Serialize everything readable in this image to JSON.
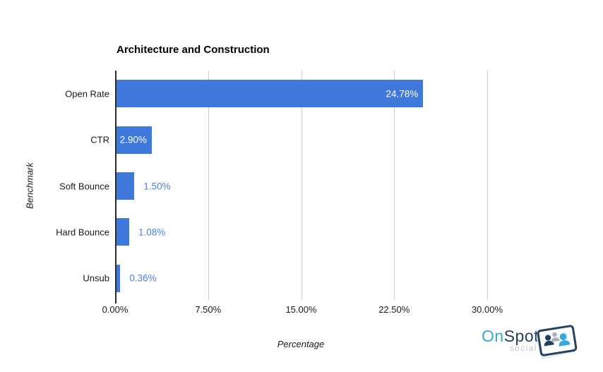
{
  "chart_data": {
    "type": "bar",
    "orientation": "horizontal",
    "title": "Architecture and Construction",
    "xlabel": "Percentage",
    "ylabel": "Benchmark",
    "categories": [
      "Open Rate",
      "CTR",
      "Soft Bounce",
      "Hard Bounce",
      "Unsub"
    ],
    "values": [
      24.78,
      2.9,
      1.5,
      1.08,
      0.36
    ],
    "value_labels": [
      "24.78%",
      "2.90%",
      "1.50%",
      "1.08%",
      "0.36%"
    ],
    "label_placement": [
      "inside",
      "inside",
      "outside",
      "outside",
      "outside"
    ],
    "xlim": [
      0,
      30
    ],
    "x_tick_values": [
      0,
      7.5,
      15,
      22.5,
      30
    ],
    "x_tick_labels": [
      "0.00%",
      "7.50%",
      "15.00%",
      "22.50%",
      "30.00%"
    ],
    "grid": true,
    "legend": "none",
    "colors": {
      "bar": "#3E79DB",
      "value_label_inside": "#FFFFFF",
      "value_label_outside": "#4C80E8",
      "grid": "#CCCCCC",
      "axis": "#2B2B2B",
      "text": "#1A1A1A"
    }
  },
  "logo": {
    "name_part1": "On",
    "name_part2": "Spot",
    "subtext": "social",
    "icon": "people-card-icon",
    "colors": {
      "cyan": "#35A8DC",
      "navy": "#24415F",
      "gray": "#A9B2BA",
      "subtext": "#C6C6C6"
    }
  }
}
